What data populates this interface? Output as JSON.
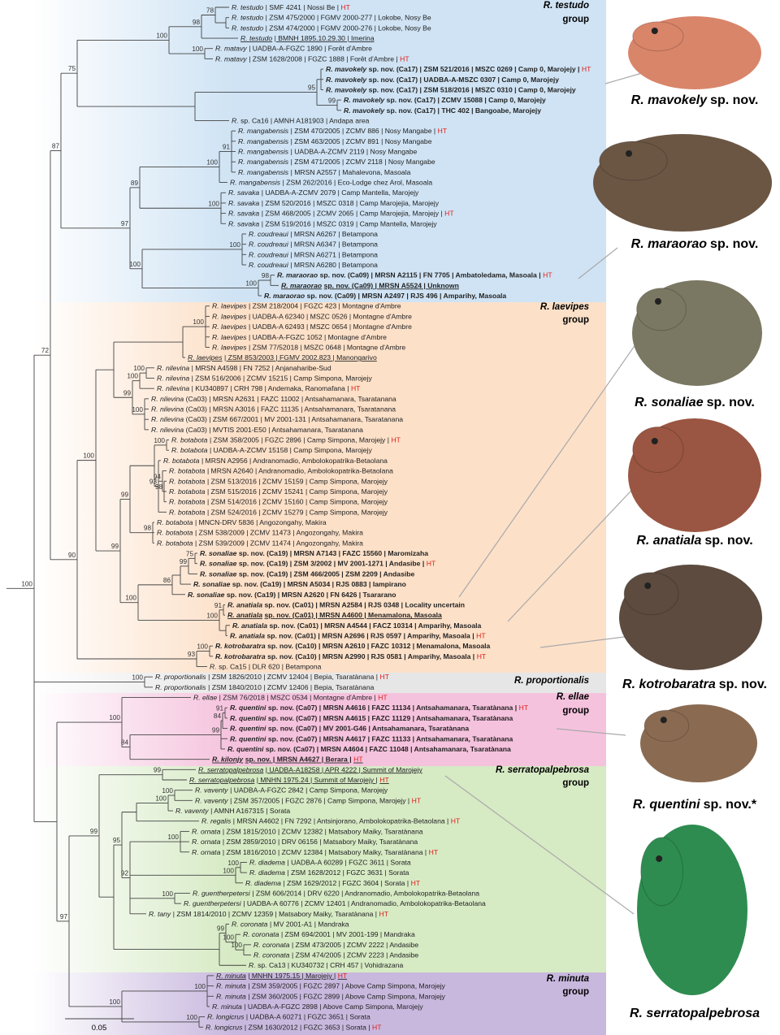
{
  "tree": {
    "tips": [
      {
        "species": "R. testudo",
        "info": "| SMF 4241 | Nossi Be |",
        "ht": "HT"
      },
      {
        "species": "R. testudo",
        "info": "| ZSM 475/2000 | FGMV 2000-277 | Lokobe, Nosy Be"
      },
      {
        "species": "R. testudo",
        "info": "| ZSM 474/2000 | FGMV 2000-276 | Lokobe, Nosy Be"
      },
      {
        "species": "R. testudo",
        "info": "| BMNH 1895.10.29.30 | Imerina",
        "style": "underline"
      },
      {
        "species": "R. matavy",
        "info": "| UADBA-A-FGZC 1890 | Forêt d'Ambre"
      },
      {
        "species": "R. matavy",
        "info": "| ZSM 1628/2008 | FGZC 1888 | Forêt d'Ambre |",
        "ht": "HT"
      },
      {
        "species": "R. mavokely",
        "info": "sp. nov. (Ca17) | ZSM 521/2016 | MSZC 0269 | Camp 0, Marojejy |",
        "ht": "HT",
        "style": "bold"
      },
      {
        "species": "R. mavokely",
        "info": "sp. nov. (Ca17) | UADBA-A-MSZC 0307 | Camp 0, Marojejy",
        "style": "bold"
      },
      {
        "species": "R. mavokely",
        "info": "sp. nov. (Ca17) | ZSM 518/2016 | MSZC 0310 | Camp 0, Marojejy",
        "style": "bold"
      },
      {
        "species": "R. mavokely",
        "info": "sp. nov. (Ca17) | ZCMV 15088 | Camp 0, Marojejy",
        "style": "bold"
      },
      {
        "species": "R. mavokely",
        "info": "sp. nov. (Ca17) | THC 402 | Bangoabe, Marojejy",
        "style": "bold"
      },
      {
        "species": "R.",
        "info": "sp. Ca16 | AMNH A181903 | Andapa area"
      },
      {
        "species": "R. mangabensis",
        "info": "| ZSM 470/2005 | ZCMV 886 | Nosy Mangabe |",
        "ht": "HT"
      },
      {
        "species": "R. mangabensis",
        "info": "| ZSM 463/2005 | ZCMV 891 | Nosy Mangabe"
      },
      {
        "species": "R. mangabensis",
        "info": "| UADBA-A-ZCMV 2119 | Nosy Mangabe"
      },
      {
        "species": "R. mangabensis",
        "info": "| ZSM 471/2005 | ZCMV 2118 | Nosy Mangabe"
      },
      {
        "species": "R. mangabensis",
        "info": "| MRSN A2557 | Mahalevona, Masoala"
      },
      {
        "species": "R. mangabensis",
        "info": "| ZSM 262/2016 | Eco-Lodge chez Arol, Masoala"
      },
      {
        "species": "R. savaka",
        "info": "| UADBA-A-ZCMV 2079 | Camp Mantella, Marojejy"
      },
      {
        "species": "R. savaka",
        "info": "| ZSM 520/2016 | MSZC 0318 | Camp Marojejia, Marojejy"
      },
      {
        "species": "R. savaka",
        "info": "| ZSM 468/2005 | ZCMV 2065 | Camp Marojejia, Marojejy |",
        "ht": "HT"
      },
      {
        "species": "R. savaka",
        "info": "| ZSM 519/2016 | MSZC 0319 | Camp Mantella, Marojejy"
      },
      {
        "species": "R. coudreaui",
        "info": "| MRSN A6267 | Betampona"
      },
      {
        "species": "R. coudreaui",
        "info": "| MRSN A6347 | Betampona"
      },
      {
        "species": "R. coudreaui",
        "info": "| MRSN A6271 | Betampona"
      },
      {
        "species": "R. coudreaui",
        "info": "| MRSN A6280 | Betampona"
      },
      {
        "species": "R. maraorao",
        "info": "sp. nov. (Ca09) | MRSN A2115 | FN 7705 | Ambatoledama, Masoala |",
        "ht": "HT",
        "style": "bold"
      },
      {
        "species": "R. maraorao",
        "info": "sp. nov. (Ca09) | MRSN A5524 | Unknown",
        "style": "bold underline"
      },
      {
        "species": "R. maraorao",
        "info": "sp. nov. (Ca09) | MRSN A2497 | RJS 496 | Amparihy, Masoala",
        "style": "bold"
      },
      {
        "species": "R. laevipes",
        "info": "| ZSM 218/2004 | FGZC 423 | Montagne d'Ambre"
      },
      {
        "species": "R. laevipes",
        "info": "| UADBA-A 62340 | MSZC 0526 | Montagne d'Ambre"
      },
      {
        "species": "R. laevipes",
        "info": "| UADBA-A 62493 | MSZC 0654 | Montagne d'Ambre"
      },
      {
        "species": "R. laevipes",
        "info": "| UADBA-A-FGZC 1052 | Montagne d'Ambre"
      },
      {
        "species": "R. laevipes",
        "info": "| ZSM 77/52018 | MSZC 0648 | Montagne d'Ambre"
      },
      {
        "species": "R. laevipes",
        "info": "| ZSM 853/2003 | FGMV 2002.823 | Manongarivo",
        "style": "underline"
      },
      {
        "species": "R. nilevina",
        "info": "| MRSN A4598 | FN 7252 | Anjanaharibe-Sud"
      },
      {
        "species": "R. nilevina",
        "info": "| ZSM 516/2006 | ZCMV 15215 | Camp Simpona, Marojejy"
      },
      {
        "species": "R. nilevina",
        "info": "| KU340897 | CRH 798 | Andemaka, Ranomafana |",
        "ht": "HT"
      },
      {
        "species": "R. nilevina",
        "info": "(Ca03) | MRSN A2631 | FAZC 11002 | Antsahamanara, Tsaratanana"
      },
      {
        "species": "R. nilevina",
        "info": "(Ca03) | MRSN A3016 | FAZC 11135 | Antsahamanara, Tsaratanana"
      },
      {
        "species": "R. nilevina",
        "info": "(Ca03) | ZSM 667/2001 | MV 2001-131 | Antsahamanara, Tsaratanana"
      },
      {
        "species": "R. nilevina",
        "info": "(Ca03) | MVTIS 2001-E50 | Antsahamanara, Tsaratanana"
      },
      {
        "species": "R. botabota",
        "info": "| ZSM 358/2005 | FGZC 2896 | Camp Simpona, Marojejy |",
        "ht": "HT"
      },
      {
        "species": "R. botabota",
        "info": "| UADBA-A-ZCMV 15158 | Camp Simpona, Marojejy"
      },
      {
        "species": "R. botabota",
        "info": "| MRSN A2956 | Andranomadio, Ambolokopatrika-Betaolana"
      },
      {
        "species": "R. botabota",
        "info": "| MRSN A2640 | Andranomadio, Ambolokopatrika-Betaolana"
      },
      {
        "species": "R. botabota",
        "info": "| ZSM 513/2016 | ZCMV 15159 | Camp Simpona, Marojejy"
      },
      {
        "species": "R. botabota",
        "info": "| ZSM 515/2016 | ZCMV 15241 | Camp Simpona, Marojejy"
      },
      {
        "species": "R. botabota",
        "info": "| ZSM 514/2016 | ZCMV 15160 | Camp Simpona, Marojejy"
      },
      {
        "species": "R. botabota",
        "info": "| ZSM 524/2016 | ZCMV 15279 | Camp Simpona, Marojejy"
      },
      {
        "species": "R. botabota",
        "info": "| MNCN-DRV 5836 | Angozongahy, Makira"
      },
      {
        "species": "R. botabota",
        "info": "| ZSM 538/2009 | ZCMV 11473 | Angozongahy, Makira"
      },
      {
        "species": "R. botabota",
        "info": "| ZSM 539/2009 | ZCMV 11474 | Angozongahy, Makira"
      },
      {
        "species": "R. sonaliae",
        "info": "sp. nov. (Ca19) | MRSN A7143 | FAZC 15560 | Maromizaha",
        "style": "bold"
      },
      {
        "species": "R. sonaliae",
        "info": "sp. nov. (Ca19) | ZSM 3/2002 | MV 2001-1271 | Andasibe |",
        "ht": "HT",
        "style": "bold"
      },
      {
        "species": "R. sonaliae",
        "info": "sp. nov. (Ca19) | ZSM 466/2005 | ZSM 2209 | Andasibe",
        "style": "bold"
      },
      {
        "species": "R. sonaliae",
        "info": "sp. nov. (Ca19) | MRSN A5034 | RJS 0883 | Iampirano",
        "style": "bold"
      },
      {
        "species": "R. sonaliae",
        "info": "sp. nov. (Ca19) | MRSN A2620 | FN 6426 | Tsararano",
        "style": "bold"
      },
      {
        "species": "R. anatiala",
        "info": "sp. nov. (Ca01) | MRSN A2584 | RJS 0348 | Locality uncertain",
        "style": "bold"
      },
      {
        "species": "R. anatiala",
        "info": "sp. nov. (Ca01) | MRSN A4600 | Menamalona, Masoala",
        "style": "bold underline"
      },
      {
        "species": "R. anatiala",
        "info": "sp. nov. (Ca01) | MRSN A4544 | FACZ 10314 | Amparihy, Masoala",
        "style": "bold"
      },
      {
        "species": "R. anatiala",
        "info": "sp. nov. (Ca01) | MRSN A2696 | RJS 0597 | Amparihy, Masoala |",
        "ht": "HT",
        "style": "bold"
      },
      {
        "species": "R. kotrobaratra",
        "info": "sp. nov. (Ca10) | MRSN A2610 | FAZC 10312 | Menamalona, Masoala",
        "style": "bold"
      },
      {
        "species": "R. kotrobaratra",
        "info": "sp. nov. (Ca10) | MRSN A2990 | RJS 0581 | Amparihy, Masoala |",
        "ht": "HT",
        "style": "bold"
      },
      {
        "species": "R.",
        "info": "sp. Ca15 | DLR 620 | Betampona"
      },
      {
        "species": "R. proportionalis",
        "info": "| ZSM 1826/2010 | ZCMV 12404 | Bepia, Tsaratànana |",
        "ht": "HT"
      },
      {
        "species": "R. proportionalis",
        "info": "| ZSM 1840/2010 | ZCMV 12406 | Bepia, Tsaratànana"
      },
      {
        "species": "R. ellae",
        "info": "| ZSM 76/2018 | MSZC 0534 | Montagne d'Ambre |",
        "ht": "HT"
      },
      {
        "species": "R. quentini",
        "info": "sp. nov. (Ca07) | MRSN A4616 | FAZC 11134 | Antsahamanara, Tsaratànana |",
        "ht": "HT",
        "style": "bold"
      },
      {
        "species": "R. quentini",
        "info": "sp. nov. (Ca07) | MRSN A4615 | FAZC 11129 | Antsahamanara, Tsaratànana",
        "style": "bold"
      },
      {
        "species": "R. quentini",
        "info": "sp. nov. (Ca07) | MV 2001-G46 | Antsahamanara, Tsaratànana",
        "style": "bold"
      },
      {
        "species": "R. quentini",
        "info": "sp. nov. (Ca07) | MRSN A4617 | FAZC 11133 | Antsahamanara, Tsaratànana",
        "style": "bold"
      },
      {
        "species": "R. quentini",
        "info": "sp. nov. (Ca07) | MRSN A4604 | FAZC 11048 | Antsahamanara, Tsaratànana",
        "style": "bold"
      },
      {
        "species": "R. kilonjy",
        "info": "sp. nov. | MRSN A4627 | Berara |",
        "ht": "HT",
        "style": "bold underline"
      },
      {
        "species": "R. serratopalpebrosa",
        "info": "| UADBA-A18258 | APR 4222 | Summit of Marojejy",
        "style": "underline"
      },
      {
        "species": "R. serratopalpebrosa",
        "info": "| MNHN 1975.24 | Summit of Marojejy |",
        "ht": "HT",
        "style": "underline"
      },
      {
        "species": "R. vaventy",
        "info": "| UADBA-A-FGZC 2842 | Camp Simpona, Marojejy"
      },
      {
        "species": "R. vaventy",
        "info": "| ZSM 357/2005 | FGZC 2876 | Camp Simpona, Marojejy |",
        "ht": "HT"
      },
      {
        "species": "R. vaventy",
        "info": "| AMNH A167315 | Sorata"
      },
      {
        "species": "R. regalis",
        "info": "| MRSN A4602 | FN 7292 | Antsinjorano, Ambolokopatrika-Betaolana |",
        "ht": "HT"
      },
      {
        "species": "R. ornata",
        "info": "| ZSM 1815/2010 | ZCMV 12382 | Matsabory Maiky, Tsaratànana"
      },
      {
        "species": "R. ornata",
        "info": "| ZSM 2859/2010 | DRV 06156 | Matsabory Maiky, Tsaratànana"
      },
      {
        "species": "R. ornata",
        "info": "| ZSM 1816/2010 | ZCMV 12384 | Matsabory Maiky, Tsaratànana |",
        "ht": "HT"
      },
      {
        "species": "R. diadema",
        "info": "| UADBA-A 60289 | FGZC 3611 | Sorata"
      },
      {
        "species": "R. diadema",
        "info": "| ZSM 1628/2012 | FGZC 3631 | Sorata"
      },
      {
        "species": "R. diadema",
        "info": "| ZSM 1629/2012 | FGZC 3604 | Sorata |",
        "ht": "HT"
      },
      {
        "species": "R. guentherpetersi",
        "info": "| ZSM 606/2014 | DRV 6220 | Andranomadio, Ambolokopatrika-Betaolana"
      },
      {
        "species": "R. guentherpetersi",
        "info": "| UADBA-A 60776 | ZCMV 12401 | Andranomadio, Ambolokopatrika-Betaolana"
      },
      {
        "species": "R. tany",
        "info": "| ZSM 1814/2010 | ZCMV 12359 | Matsabory Maiky, Tsaratànana |",
        "ht": "HT"
      },
      {
        "species": "R. coronata",
        "info": "| MV 2001-A1 | Mandraka"
      },
      {
        "species": "R. coronata",
        "info": "| ZSM 694/2001 | MV 2001-199 | Mandraka"
      },
      {
        "species": "R. coronata",
        "info": "| ZSM 473/2005 | ZCMV 2222 | Andasibe"
      },
      {
        "species": "R. coronata",
        "info": "| ZSM 474/2005 | ZCMV 2223 | Andasibe"
      },
      {
        "species": "R.",
        "info": "sp. Ca13 | KU340732 | CRH 457 | Vohidrazana"
      },
      {
        "species": "R. minuta",
        "info": "| MNHN 1975.15 | Marojejy |",
        "ht": "HT",
        "style": "underline"
      },
      {
        "species": "R. minuta",
        "info": "| ZSM 359/2005 | FGZC 2897 | Above Camp Simpona, Marojejy"
      },
      {
        "species": "R. minuta",
        "info": "| ZSM 360/2005 | FGZC 2899 | Above Camp Simpona, Marojejy"
      },
      {
        "species": "R. minuta",
        "info": "| UADBA-A-FGZC 2898 | Above Camp Simpona, Marojejy"
      },
      {
        "species": "R. longicrus",
        "info": "| UADBA-A 60271 | FGZC 3651 | Sorata"
      },
      {
        "species": "R. longicrus",
        "info": "| ZSM 1630/2012 | FGZC 3653 | Sorata |",
        "ht": "HT"
      }
    ],
    "supports": [
      100,
      72,
      87,
      75,
      100,
      98,
      78,
      100,
      95,
      99,
      97,
      89,
      100,
      91,
      100,
      100,
      100,
      100,
      98,
      90,
      100,
      100,
      99,
      100,
      100,
      100,
      99,
      99,
      100,
      93,
      94,
      98,
      98,
      100,
      86,
      99,
      75,
      100,
      91,
      93,
      100,
      100,
      100,
      84,
      99,
      84,
      91,
      97,
      99,
      99,
      95,
      100,
      100,
      92,
      100,
      100,
      99,
      100,
      100,
      100,
      100,
      100,
      100,
      100
    ],
    "scale_bar": 0.05
  },
  "groups": [
    {
      "name": "R. testudo",
      "suffix": "group"
    },
    {
      "name": "R. laevipes",
      "suffix": "group"
    },
    {
      "name": "R. proportionalis"
    },
    {
      "name": "R. ellae",
      "suffix": "group"
    },
    {
      "name": "R. serratopalpebrosa",
      "suffix": "group"
    },
    {
      "name": "R. minuta",
      "suffix": "group"
    }
  ],
  "photos": [
    {
      "species": "R. mavokely",
      "suffix": "sp. nov."
    },
    {
      "species": "R. maraorao",
      "suffix": "sp. nov."
    },
    {
      "species": "R. sonaliae",
      "suffix": "sp. nov."
    },
    {
      "species": "R. anatiala",
      "suffix": "sp. nov."
    },
    {
      "species": "R. kotrobaratra",
      "suffix": "sp. nov."
    },
    {
      "species": "R. quentini",
      "suffix": "sp. nov.*"
    },
    {
      "species": "R. serratopalpebrosa"
    }
  ]
}
